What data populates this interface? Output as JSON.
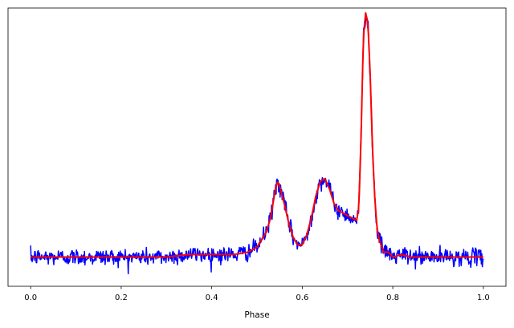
{
  "chart_data": {
    "type": "line",
    "xlabel": "Phase",
    "ylabel": "",
    "title": "",
    "xlim": [
      -0.05,
      1.05
    ],
    "ylim": [
      -0.12,
      1.02
    ],
    "x_ticks": [
      "0.0",
      "0.2",
      "0.4",
      "0.6",
      "0.8",
      "1.0"
    ],
    "grid": false,
    "series": [
      {
        "color": "#0000ff",
        "role": "noisy observations",
        "noise_sigma": 0.017,
        "x": [
          0.0,
          0.05,
          0.1,
          0.15,
          0.2,
          0.25,
          0.3,
          0.35,
          0.4,
          0.45,
          0.48,
          0.5,
          0.52,
          0.53,
          0.54,
          0.545,
          0.55,
          0.56,
          0.57,
          0.58,
          0.59,
          0.6,
          0.61,
          0.62,
          0.63,
          0.64,
          0.65,
          0.66,
          0.67,
          0.68,
          0.69,
          0.7,
          0.71,
          0.72,
          0.725,
          0.73,
          0.735,
          0.74,
          0.745,
          0.75,
          0.755,
          0.76,
          0.765,
          0.77,
          0.78,
          0.79,
          0.8,
          0.82,
          0.84,
          0.86,
          0.9,
          0.95,
          1.0
        ],
        "y": [
          0.0,
          0.0,
          0.0,
          0.0,
          0.0,
          0.0,
          0.0,
          0.01,
          0.01,
          0.01,
          0.02,
          0.04,
          0.1,
          0.16,
          0.27,
          0.31,
          0.29,
          0.22,
          0.14,
          0.08,
          0.05,
          0.05,
          0.09,
          0.16,
          0.25,
          0.31,
          0.32,
          0.28,
          0.22,
          0.19,
          0.18,
          0.17,
          0.16,
          0.15,
          0.2,
          0.5,
          0.9,
          1.0,
          0.96,
          0.75,
          0.45,
          0.25,
          0.12,
          0.07,
          0.02,
          0.02,
          0.0,
          0.01,
          0.0,
          0.0,
          0.0,
          0.0,
          0.0
        ]
      },
      {
        "color": "#ff0000",
        "role": "smooth fit",
        "x": [
          0.0,
          0.05,
          0.1,
          0.15,
          0.2,
          0.25,
          0.3,
          0.35,
          0.4,
          0.45,
          0.48,
          0.5,
          0.52,
          0.53,
          0.54,
          0.545,
          0.55,
          0.56,
          0.57,
          0.58,
          0.59,
          0.6,
          0.61,
          0.62,
          0.63,
          0.64,
          0.65,
          0.66,
          0.67,
          0.68,
          0.69,
          0.7,
          0.71,
          0.72,
          0.725,
          0.73,
          0.735,
          0.74,
          0.745,
          0.75,
          0.755,
          0.76,
          0.765,
          0.77,
          0.78,
          0.79,
          0.8,
          0.82,
          0.84,
          0.86,
          0.9,
          0.95,
          1.0
        ],
        "y": [
          0.0,
          0.0,
          0.0,
          0.0,
          0.0,
          0.0,
          0.0,
          0.01,
          0.01,
          0.01,
          0.02,
          0.04,
          0.1,
          0.16,
          0.27,
          0.31,
          0.29,
          0.22,
          0.14,
          0.08,
          0.05,
          0.05,
          0.09,
          0.16,
          0.25,
          0.31,
          0.32,
          0.28,
          0.22,
          0.19,
          0.18,
          0.17,
          0.16,
          0.15,
          0.2,
          0.5,
          0.9,
          1.0,
          0.96,
          0.75,
          0.45,
          0.25,
          0.12,
          0.07,
          0.02,
          0.02,
          0.0,
          0.01,
          0.0,
          0.0,
          0.0,
          0.0,
          0.0
        ]
      }
    ]
  }
}
